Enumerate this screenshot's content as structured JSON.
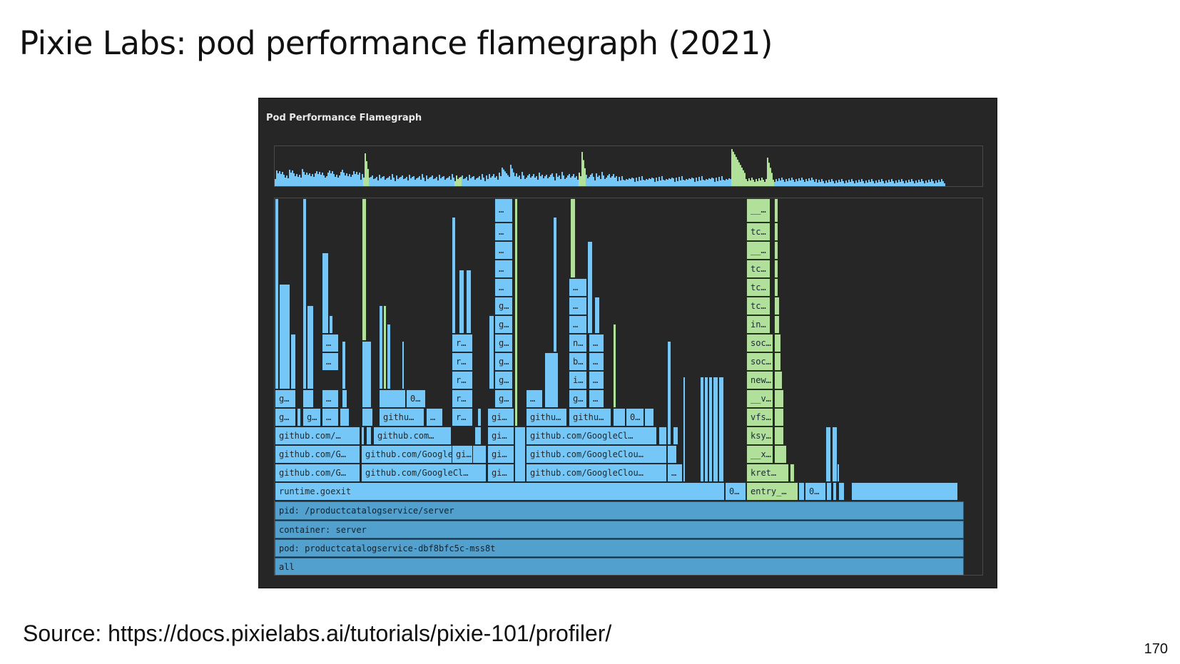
{
  "slide": {
    "title": "Pixie Labs: pod performance flamegraph (2021)",
    "source": "Source: https://docs.pixielabs.ai/tutorials/pixie-101/profiler/",
    "page_number": "170"
  },
  "panel": {
    "title": "Pod Performance Flamegraph"
  },
  "colors": {
    "go_frame": "#74c7f6",
    "kernel_frame": "#b1e09a",
    "base_frame": "#52a0cd",
    "panel_bg": "#262626"
  },
  "flamegraph": {
    "base_labels": {
      "all": "all",
      "pod": "pod: productcatalogservice-dbf8bfc5c-mss8t",
      "container": "container: server",
      "pid": "pid: /productcatalogservice/server"
    },
    "labels": {
      "runtime_goexit": "runtime.goexit",
      "kernel_entry": "entry_…",
      "kernel_kret": "kret…",
      "kernel_x": "__x…",
      "kernel_ksy": "ksy…",
      "kernel_vfs": "vfs…",
      "kernel_v": "__v…",
      "kernel_new": "new…",
      "kernel_soc1": "soc…",
      "kernel_soc2": "soc…",
      "kernel_in": "in…",
      "kernel_tc1": "tc…",
      "kernel_tc2": "tc…",
      "kernel_tc3": "tc…",
      "kernel_dunder1": "__…",
      "kernel_tc4": "tc…",
      "kernel_dunder2": "__…",
      "g1_l1": "github.com/G…",
      "g1_l2": "github.com/G…",
      "g1_l3": "github.com/…",
      "g1_l4a": "g…",
      "g1_l4b": "g…",
      "g1_l4c": "…",
      "g1_l5": "g…",
      "g1_l5c": "…",
      "g1_l6": "…",
      "g1_l7": "…",
      "g2_l1": "github.com/GoogleCl…",
      "g2_l2": "github.com/GoogleCl…",
      "g2_l3": "github.com…",
      "g2_l4": "githu…",
      "g2_l4b": "…",
      "g2_l5": "0…",
      "g3_l3": "gi…",
      "g3_l4": "r…",
      "g3_l5": "r…",
      "g3_l6": "r…",
      "g3_l7": "r…",
      "g3_l8": "r…",
      "g4_l1": "gi…",
      "g4_l2": "gi…",
      "g4_l3": "gi…",
      "g4_l4": "gi…",
      "g4_l5": "g…",
      "g4_l6": "g…",
      "g4_l7": "g…",
      "g4_l8": "g…",
      "g4_l9": "g…",
      "g4_l10": "g…",
      "g4_l11": "…",
      "g4_l12": "…",
      "g4_l13": "…",
      "g4_l14": "…",
      "g4_l15": "…",
      "g5_l1": "github.com/GoogleClou…",
      "g5_l1b": "…",
      "g5_l2": "github.com/GoogleClou…",
      "g5_l3": "github.com/GoogleCl…",
      "g5_l4a": "githu…",
      "g5_l4b": "githu…",
      "g5_l4c": "0…",
      "g5_l5a": "…",
      "g5_l5b": "g…",
      "g5_l5c": "…",
      "g5_l6a": "i…",
      "g5_l6b": "…",
      "g5_l7a": "b…",
      "g5_l7b": "…",
      "g5_l8a": "n…",
      "g5_l8b": "…",
      "g5_l9": "…",
      "g5_l10": "…",
      "g5_l11": "…",
      "misc_zero1": "0…",
      "misc_zero2": "0…"
    }
  }
}
